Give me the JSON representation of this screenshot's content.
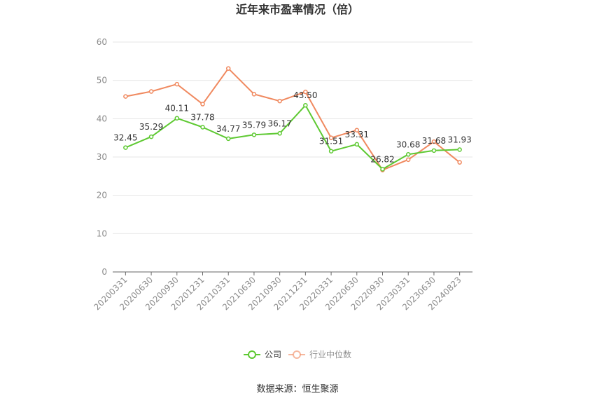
{
  "chart_data": {
    "type": "line",
    "title": "近年来市盈率情况（倍）",
    "categories": [
      "20200331",
      "20200630",
      "20200930",
      "20201231",
      "20210331",
      "20210630",
      "20210930",
      "20211231",
      "20220331",
      "20220630",
      "20220930",
      "20230331",
      "20230630",
      "20240823"
    ],
    "series": [
      {
        "name": "公司",
        "color": "#5ec932",
        "values": [
          32.45,
          35.29,
          40.11,
          37.78,
          34.77,
          35.79,
          36.17,
          43.5,
          31.51,
          33.31,
          26.82,
          30.68,
          31.68,
          31.93
        ],
        "labels": [
          "32.45",
          "35.29",
          "40.11",
          "37.78",
          "34.77",
          "35.79",
          "36.17",
          "43.50",
          "31.51",
          "33.31",
          "26.82",
          "30.68",
          "31.68",
          "31.93"
        ]
      },
      {
        "name": "行业中位数",
        "color": "#f0895f",
        "values": [
          45.8,
          47.1,
          49.0,
          43.8,
          53.1,
          46.4,
          44.6,
          47.0,
          35.0,
          37.0,
          26.6,
          29.3,
          34.0,
          28.6
        ]
      }
    ],
    "ylim": [
      0,
      60
    ],
    "yticks": [
      0,
      10,
      20,
      30,
      40,
      50,
      60
    ],
    "grid": true,
    "legend_position": "bottom"
  },
  "source": "数据来源：恒生聚源"
}
